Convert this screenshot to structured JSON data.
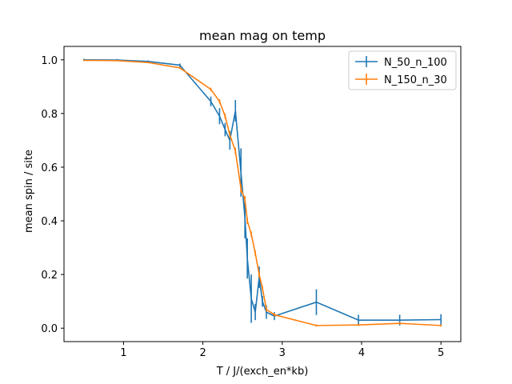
{
  "chart_data": {
    "type": "line",
    "title": "mean mag on temp",
    "xlabel": "T / J/(exch_en*kb)",
    "ylabel": "mean spin / site",
    "xlim": [
      0.25,
      5.25
    ],
    "ylim": [
      -0.05,
      1.05
    ],
    "xticks": [
      1,
      2,
      3,
      4,
      5
    ],
    "yticks": [
      0.0,
      0.2,
      0.4,
      0.6,
      0.8,
      1.0
    ],
    "grid": false,
    "legend_position": "upper right",
    "series": [
      {
        "name": "N_50_n_100",
        "color": "#1f77b4",
        "x": [
          0.5,
          0.92,
          1.31,
          1.71,
          2.1,
          2.21,
          2.28,
          2.34,
          2.41,
          2.48,
          2.53,
          2.56,
          2.61,
          2.66,
          2.71,
          2.75,
          2.8,
          2.9,
          3.43,
          3.96,
          4.48,
          5.0
        ],
        "y": [
          1.0,
          0.999,
          0.994,
          0.98,
          0.845,
          0.79,
          0.74,
          0.7,
          0.81,
          0.58,
          0.41,
          0.26,
          0.11,
          0.06,
          0.19,
          0.1,
          0.06,
          0.045,
          0.097,
          0.03,
          0.03,
          0.032
        ],
        "err": [
          0.004,
          0.004,
          0.004,
          0.006,
          0.018,
          0.03,
          0.025,
          0.035,
          0.04,
          0.09,
          0.075,
          0.075,
          0.09,
          0.03,
          0.04,
          0.02,
          0.025,
          0.015,
          0.048,
          0.02,
          0.02,
          0.02
        ]
      },
      {
        "name": "N_150_n_30",
        "color": "#ff7f0e",
        "x": [
          0.5,
          0.92,
          1.31,
          1.71,
          2.1,
          2.21,
          2.28,
          2.34,
          2.41,
          2.48,
          2.53,
          2.56,
          2.61,
          2.66,
          2.71,
          2.75,
          2.8,
          2.9,
          3.43,
          3.96,
          4.48,
          5.0
        ],
        "y": [
          0.998,
          0.997,
          0.99,
          0.97,
          0.89,
          0.845,
          0.79,
          0.72,
          0.66,
          0.52,
          0.48,
          0.4,
          0.35,
          0.28,
          0.2,
          0.15,
          0.07,
          0.05,
          0.01,
          0.012,
          0.018,
          0.01
        ],
        "err": [
          0.002,
          0.002,
          0.003,
          0.004,
          0.006,
          0.008,
          0.01,
          0.01,
          0.012,
          0.015,
          0.012,
          0.012,
          0.01,
          0.01,
          0.01,
          0.008,
          0.008,
          0.006,
          0.004,
          0.004,
          0.004,
          0.004
        ]
      }
    ]
  }
}
